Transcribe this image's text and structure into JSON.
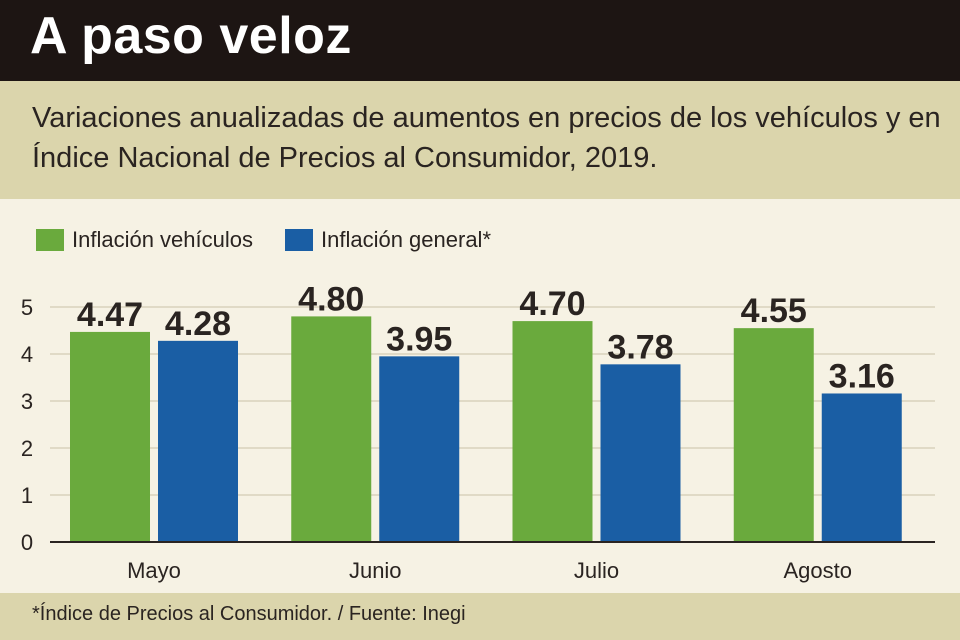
{
  "header": {
    "title": "A paso veloz",
    "subtitle": "Variaciones anualizadas de aumentos en precios de los vehículos y en Índice Nacional de Precios al Consumidor, 2019."
  },
  "footer": {
    "note": "*Índice de Precios al Consumidor. / Fuente: Inegi"
  },
  "chart_data": {
    "type": "bar",
    "categories": [
      "Mayo",
      "Junio",
      "Julio",
      "Agosto"
    ],
    "series": [
      {
        "name": "Inflación vehículos",
        "color": "#6aaa3d",
        "values": [
          4.47,
          4.8,
          4.7,
          4.55
        ],
        "labels": [
          "4.47",
          "4.80",
          "4.70",
          "4.55"
        ]
      },
      {
        "name": "Inflación general*",
        "color": "#1a5ea4",
        "values": [
          4.28,
          3.95,
          3.78,
          3.16
        ],
        "labels": [
          "4.28",
          "3.95",
          "3.78",
          "3.16"
        ]
      }
    ],
    "yticks": [
      "0",
      "1",
      "2",
      "3",
      "4",
      "5"
    ],
    "ylim": [
      0,
      5
    ],
    "grid": true,
    "legend": "top-left"
  }
}
